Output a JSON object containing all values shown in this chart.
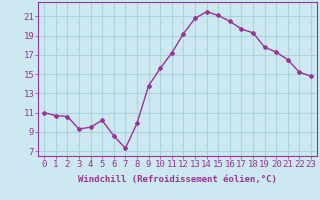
{
  "x": [
    0,
    1,
    2,
    3,
    4,
    5,
    6,
    7,
    8,
    9,
    10,
    11,
    12,
    13,
    14,
    15,
    16,
    17,
    18,
    19,
    20,
    21,
    22,
    23
  ],
  "y": [
    11.0,
    10.7,
    10.6,
    9.3,
    9.5,
    10.2,
    8.6,
    7.3,
    9.9,
    13.8,
    15.6,
    17.2,
    19.2,
    20.8,
    21.5,
    21.1,
    20.5,
    19.7,
    19.3,
    17.8,
    17.3,
    16.5,
    15.2,
    14.8
  ],
  "line_color": "#993399",
  "marker": "D",
  "marker_size": 2,
  "bg_color": "#cce8f0",
  "grid_color": "#aad4e0",
  "xlabel": "Windchill (Refroidissement éolien,°C)",
  "ylabel_ticks": [
    7,
    9,
    11,
    13,
    15,
    17,
    19,
    21
  ],
  "ylim": [
    6.5,
    22.5
  ],
  "xlim": [
    -0.5,
    23.5
  ],
  "xtick_labels": [
    "0",
    "1",
    "2",
    "3",
    "4",
    "5",
    "6",
    "7",
    "8",
    "9",
    "10",
    "11",
    "12",
    "13",
    "14",
    "15",
    "16",
    "17",
    "18",
    "19",
    "20",
    "21",
    "22",
    "23"
  ],
  "title_color": "#993399",
  "xlabel_fontsize": 6.5,
  "tick_fontsize": 6.5,
  "line_width": 1.0
}
